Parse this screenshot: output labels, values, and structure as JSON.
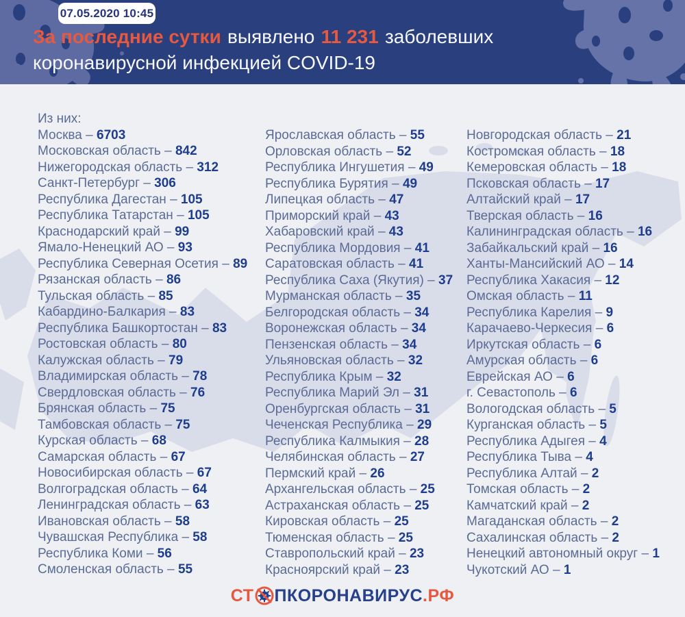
{
  "header": {
    "date_badge": "07.05.2020 10:45",
    "headline": {
      "highlight_lead": "За последние сутки",
      "mid": "выявлено",
      "count": "11 231",
      "tail": "заболевших",
      "line2": "коронавирусной инфекцией COVID-19"
    }
  },
  "list": {
    "intro": "Из них:",
    "separator": "–",
    "columns": [
      {
        "rows": [
          {
            "region": "Москва",
            "count": "6703"
          },
          {
            "region": "Московская область",
            "count": "842"
          },
          {
            "region": "Нижегородская область",
            "count": "312"
          },
          {
            "region": "Санкт-Петербург",
            "count": "306"
          },
          {
            "region": "Республика Дагестан",
            "count": "105"
          },
          {
            "region": "Республика Татарстан",
            "count": "105"
          },
          {
            "region": "Краснодарский край",
            "count": "99"
          },
          {
            "region": "Ямало-Ненецкий АО",
            "count": "93"
          },
          {
            "region": "Республика Северная Осетия",
            "count": "89"
          },
          {
            "region": "Рязанская область",
            "count": "86"
          },
          {
            "region": "Тульская область",
            "count": "85"
          },
          {
            "region": "Кабардино-Балкария",
            "count": "83"
          },
          {
            "region": "Республика Башкортостан",
            "count": "83"
          },
          {
            "region": "Ростовская область",
            "count": "80"
          },
          {
            "region": "Калужская область",
            "count": "79"
          },
          {
            "region": "Владимирская область",
            "count": "78"
          },
          {
            "region": "Свердловская область",
            "count": "76"
          },
          {
            "region": "Брянская область",
            "count": "75"
          },
          {
            "region": "Тамбовская область",
            "count": "75"
          },
          {
            "region": "Курская область",
            "count": "68"
          },
          {
            "region": "Самарская область",
            "count": "67"
          },
          {
            "region": "Новосибирская область",
            "count": "67"
          },
          {
            "region": "Волгоградская область",
            "count": "64"
          },
          {
            "region": "Ленинградская область",
            "count": "63"
          },
          {
            "region": "Ивановская область",
            "count": "58"
          },
          {
            "region": "Чувашская Республика",
            "count": "58"
          },
          {
            "region": "Республика Коми",
            "count": "56"
          },
          {
            "region": "Смоленская область",
            "count": "55"
          }
        ]
      },
      {
        "rows": [
          {
            "region": "Ярославская область",
            "count": "55"
          },
          {
            "region": "Орловская область",
            "count": "52"
          },
          {
            "region": "Республика Ингушетия",
            "count": "49"
          },
          {
            "region": "Республика Бурятия",
            "count": "49"
          },
          {
            "region": "Липецкая область",
            "count": "47"
          },
          {
            "region": "Приморский край",
            "count": "43"
          },
          {
            "region": "Хабаровский край",
            "count": "43"
          },
          {
            "region": "Республика Мордовия",
            "count": "41"
          },
          {
            "region": "Саратовская область",
            "count": "41"
          },
          {
            "region": "Республика Саха (Якутия)",
            "count": "37"
          },
          {
            "region": "Мурманская область",
            "count": "35"
          },
          {
            "region": "Белгородская область",
            "count": "34"
          },
          {
            "region": "Воронежская область",
            "count": "34"
          },
          {
            "region": "Пензенская область",
            "count": "34"
          },
          {
            "region": "Ульяновская область",
            "count": "32"
          },
          {
            "region": "Республика Крым",
            "count": "32"
          },
          {
            "region": "Республика Марий Эл",
            "count": "31"
          },
          {
            "region": "Оренбургская область",
            "count": "31"
          },
          {
            "region": "Чеченская Республика",
            "count": "29"
          },
          {
            "region": "Республика Калмыкия",
            "count": "28"
          },
          {
            "region": "Челябинская область",
            "count": "27"
          },
          {
            "region": "Пермский край",
            "count": "26"
          },
          {
            "region": "Архангельская область",
            "count": "25"
          },
          {
            "region": "Астраханская область",
            "count": "25"
          },
          {
            "region": "Кировская область",
            "count": "25"
          },
          {
            "region": "Тюменская область",
            "count": "25"
          },
          {
            "region": "Ставропольский край",
            "count": "23"
          },
          {
            "region": "Красноярский край",
            "count": "23"
          }
        ]
      },
      {
        "rows": [
          {
            "region": "Новгородская область",
            "count": "21"
          },
          {
            "region": "Костромская область",
            "count": "18"
          },
          {
            "region": "Кемеровская область",
            "count": "18"
          },
          {
            "region": "Псковская область",
            "count": "17"
          },
          {
            "region": "Алтайский край",
            "count": "17"
          },
          {
            "region": "Тверская область",
            "count": "16"
          },
          {
            "region": "Калининградская область",
            "count": "16"
          },
          {
            "region": "Забайкальский край",
            "count": "16"
          },
          {
            "region": "Ханты-Мансийский АО",
            "count": "14"
          },
          {
            "region": "Республика Хакасия",
            "count": "12"
          },
          {
            "region": "Омская область",
            "count": "11"
          },
          {
            "region": "Республика Карелия",
            "count": "9"
          },
          {
            "region": "Карачаево-Черкесия",
            "count": "6"
          },
          {
            "region": "Иркутская область",
            "count": "6"
          },
          {
            "region": "Амурская область",
            "count": "6"
          },
          {
            "region": "Еврейская АО",
            "count": "6"
          },
          {
            "region": "г. Севастополь",
            "count": "6"
          },
          {
            "region": "Вологодская область",
            "count": "5"
          },
          {
            "region": "Курганская область",
            "count": "5"
          },
          {
            "region": "Республика Адыгея",
            "count": "4"
          },
          {
            "region": "Республика Тыва",
            "count": "4"
          },
          {
            "region": "Республика Алтай",
            "count": "2"
          },
          {
            "region": "Томская область",
            "count": "2"
          },
          {
            "region": "Камчатский край",
            "count": "2"
          },
          {
            "region": "Магаданская область",
            "count": "2"
          },
          {
            "region": "Сахалинская область",
            "count": "2"
          },
          {
            "region": "Ненецкий автономный округ",
            "count": "1"
          },
          {
            "region": "Чукотский АО",
            "count": "1"
          }
        ]
      }
    ]
  },
  "footer": {
    "logo_left": "СТ",
    "logo_middle": "ПКОРОНАВИРУС",
    "logo_domain": ".РФ",
    "logo_icon": "no-virus-icon"
  },
  "colors": {
    "banner_bg": "#2a3f7d",
    "accent_orange": "#e4593f",
    "headline_white": "#f6f8fb",
    "region_text": "#5b6b95",
    "count_text": "#1e3d8c",
    "logo_blue": "#27408b",
    "map_fill": "#d9dce9",
    "body_bg": "#eef0f3",
    "virus_decoration": "#5e6ba3"
  }
}
